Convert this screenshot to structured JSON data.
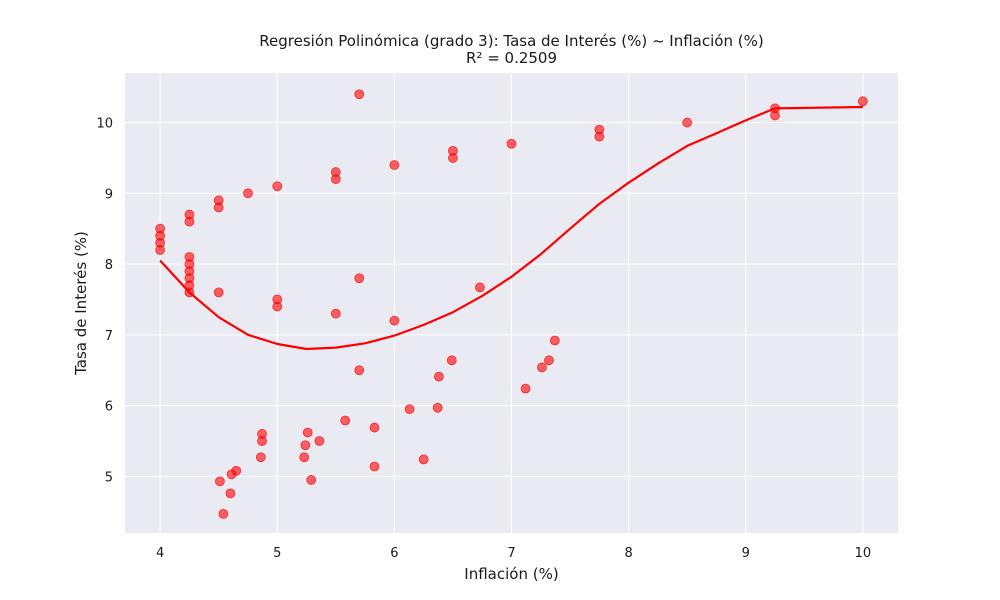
{
  "chart_data": {
    "type": "scatter",
    "title": "Regresión Polinómica (grado 3): Tasa de Interés (%) ~ Inflación (%)",
    "subtitle": "R² = 0.2509",
    "xlabel": "Inflación (%)",
    "ylabel": "Tasa de Interés (%)",
    "xlim": [
      3.7,
      10.3
    ],
    "ylim": [
      4.2,
      10.7
    ],
    "xticks": [
      4,
      5,
      6,
      7,
      8,
      9,
      10
    ],
    "yticks": [
      5,
      6,
      7,
      8,
      9,
      10
    ],
    "grid": true,
    "background": "#eaeaf2",
    "point_color": "#ff0000",
    "line_color": "#ff0000",
    "series": [
      {
        "kind": "points",
        "x": [
          4.0,
          4.0,
          4.0,
          4.0,
          4.25,
          4.25,
          4.25,
          4.25,
          4.25,
          4.25,
          4.25,
          4.25,
          4.5,
          4.5,
          4.5,
          4.75,
          5.0,
          5.0,
          5.0,
          5.5,
          5.5,
          5.5,
          5.7,
          5.7,
          5.7,
          6.0,
          6.0,
          6.5,
          6.5,
          7.0,
          7.75,
          7.75,
          8.5,
          9.25,
          9.25,
          10.0,
          6.73,
          4.51,
          4.54,
          4.6,
          4.61,
          4.65,
          4.86,
          4.87,
          4.87,
          5.23,
          5.24,
          5.26,
          5.29,
          5.36,
          5.58,
          5.83,
          5.83,
          6.13,
          6.25,
          6.37,
          6.38,
          6.49,
          7.12,
          7.26,
          7.32,
          7.37
        ],
        "y": [
          8.5,
          8.4,
          8.3,
          8.2,
          8.7,
          8.6,
          8.1,
          8.0,
          7.9,
          7.8,
          7.7,
          7.6,
          8.9,
          8.8,
          7.6,
          9.0,
          9.1,
          7.5,
          7.4,
          9.3,
          9.2,
          7.3,
          10.4,
          7.8,
          6.5,
          9.4,
          7.2,
          9.6,
          9.5,
          9.7,
          9.9,
          9.8,
          10.0,
          10.2,
          10.1,
          10.3,
          7.67,
          4.93,
          4.47,
          4.76,
          5.03,
          5.08,
          5.27,
          5.5,
          5.6,
          5.27,
          5.44,
          5.62,
          4.95,
          5.5,
          5.79,
          5.69,
          5.14,
          5.95,
          5.24,
          5.97,
          6.41,
          6.64,
          6.24,
          6.54,
          6.64,
          6.92
        ]
      },
      {
        "kind": "line",
        "x": [
          4.0,
          4.25,
          4.5,
          4.75,
          5.0,
          5.25,
          5.5,
          5.75,
          6.0,
          6.25,
          6.5,
          6.75,
          7.0,
          7.25,
          7.5,
          7.75,
          8.0,
          8.25,
          8.5,
          8.75,
          9.0,
          9.25,
          10.0
        ],
        "y": [
          8.05,
          7.6,
          7.25,
          7.0,
          6.87,
          6.8,
          6.82,
          6.88,
          6.99,
          7.14,
          7.32,
          7.55,
          7.82,
          8.14,
          8.5,
          8.85,
          9.15,
          9.42,
          9.67,
          9.85,
          10.03,
          10.2,
          10.22
        ]
      }
    ]
  }
}
